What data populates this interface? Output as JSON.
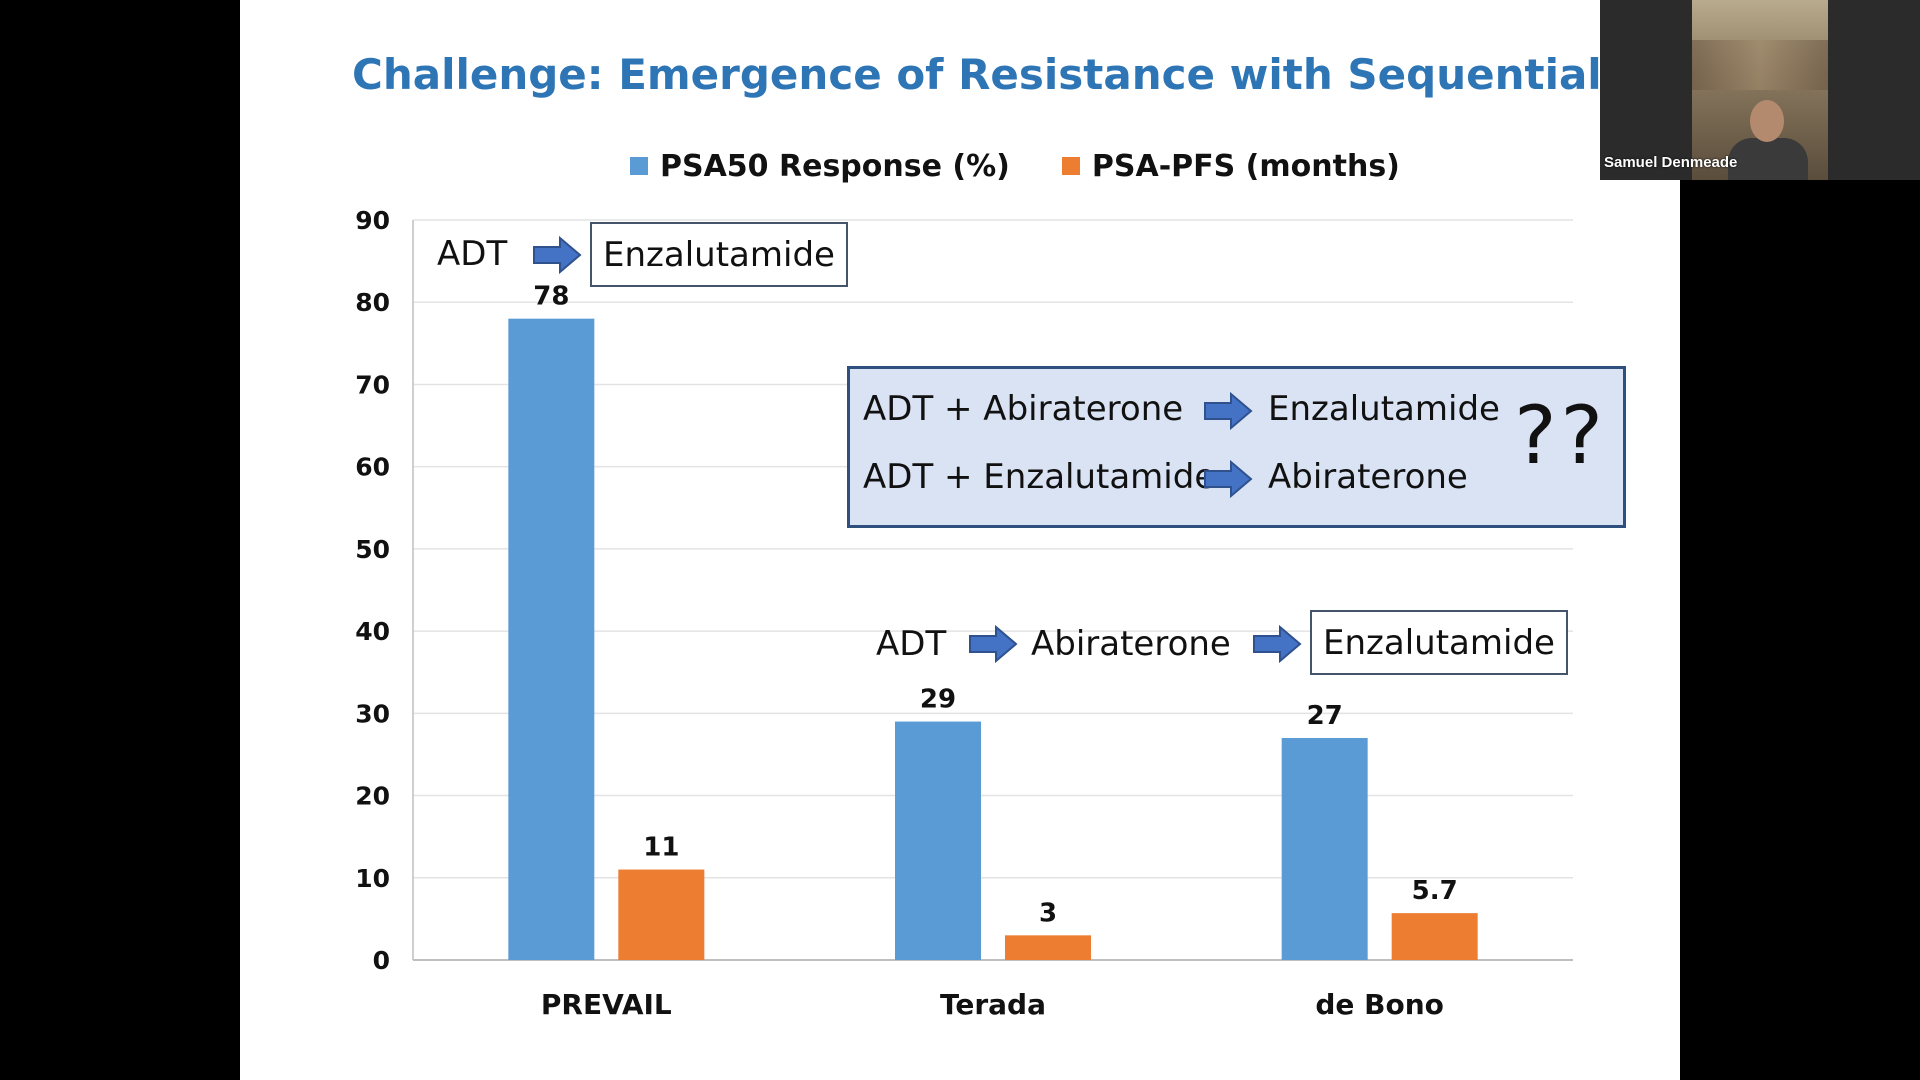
{
  "slide": {
    "title": "Challenge: Emergence of Resistance with Sequential Therapy"
  },
  "legend": [
    {
      "label": "PSA50 Response (%)",
      "color": "#5b9bd5"
    },
    {
      "label": "PSA-PFS (months)",
      "color": "#ed7d31"
    }
  ],
  "chart_data": {
    "type": "bar",
    "title": "",
    "xlabel": "",
    "ylabel": "",
    "categories": [
      "PREVAIL",
      "Terada",
      "de Bono"
    ],
    "series": [
      {
        "name": "PSA50 Response (%)",
        "values": [
          78,
          29,
          27
        ],
        "color": "#5b9bd5"
      },
      {
        "name": "PSA-PFS (months)",
        "values": [
          11,
          3,
          5.7
        ],
        "color": "#ed7d31"
      }
    ],
    "value_labels": [
      [
        "78",
        "29",
        "27"
      ],
      [
        "11",
        "3",
        "5.7"
      ]
    ],
    "ylim": [
      0,
      90
    ],
    "yticks": [
      0,
      10,
      20,
      30,
      40,
      50,
      60,
      70,
      80,
      90
    ],
    "grid": true,
    "legend_position": "top"
  },
  "annotations": {
    "prevail_seq": {
      "step1": "ADT",
      "step2": "Enzalutamide"
    },
    "terada_seq": {
      "step1": "ADT",
      "step2": "Abiraterone",
      "step3": "Enzalutamide"
    },
    "combo": {
      "row1_from": "ADT + Abiraterone",
      "row1_to": "Enzalutamide",
      "row2_from": "ADT + Enzalutamide",
      "row2_to": "Abiraterone",
      "question": "??"
    }
  },
  "video": {
    "participant_name": "Samuel Denmeade"
  }
}
